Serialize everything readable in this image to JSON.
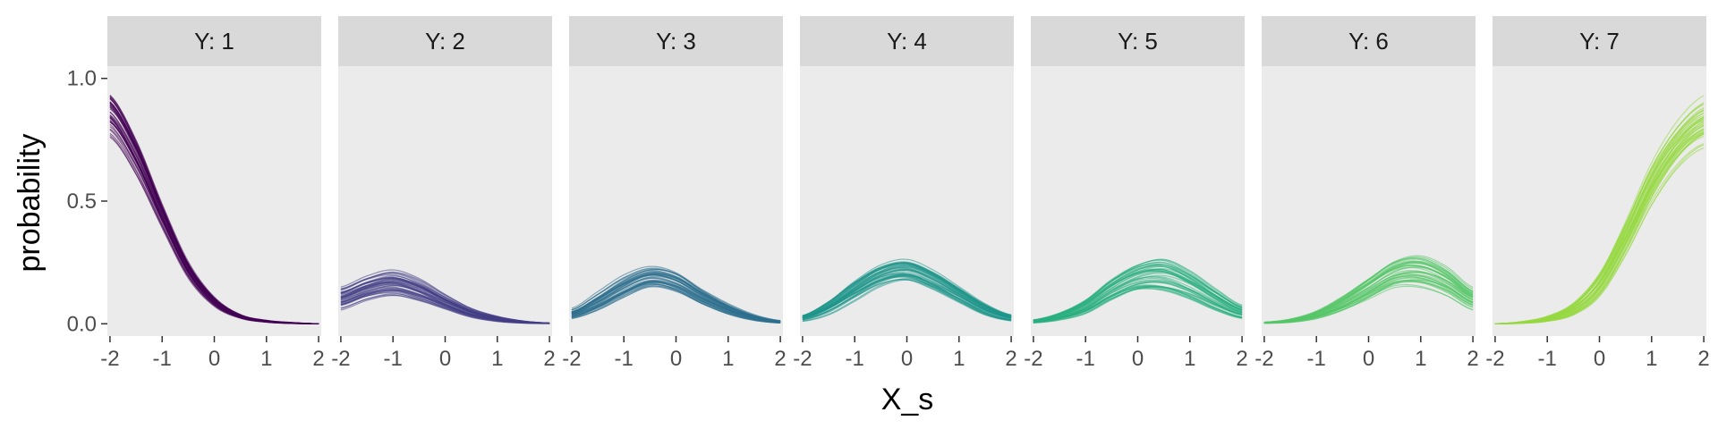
{
  "chart_data": {
    "type": "line",
    "xlabel": "X_s",
    "ylabel": "probability",
    "x_ticks": [
      -2,
      -1,
      0,
      1,
      2
    ],
    "x_tick_labels": [
      "-2",
      "-1",
      "0",
      "1",
      "2"
    ],
    "y_ticks": [
      0.0,
      0.5,
      1.0
    ],
    "y_tick_labels": [
      "0.0",
      "0.5",
      "1.0"
    ],
    "xlim": [
      -2.05,
      2.05
    ],
    "ylim": [
      -0.05,
      1.05
    ],
    "grid": false,
    "legend": "none",
    "x": [
      -2,
      -1.5,
      -1,
      -0.5,
      0,
      0.5,
      1,
      1.5,
      2
    ],
    "panels": [
      {
        "label": "Y: 1",
        "color": "#440154",
        "mean": [
          0.85,
          0.68,
          0.44,
          0.22,
          0.09,
          0.03,
          0.01,
          0.003,
          0.0
        ],
        "spread": [
          0.08,
          0.07,
          0.05,
          0.035,
          0.02,
          0.008,
          0.004,
          0.002,
          0.0
        ]
      },
      {
        "label": "Y: 2",
        "color": "#433E85",
        "mean": [
          0.11,
          0.15,
          0.17,
          0.14,
          0.09,
          0.045,
          0.02,
          0.007,
          0.002
        ],
        "spread": [
          0.04,
          0.045,
          0.05,
          0.045,
          0.03,
          0.018,
          0.01,
          0.004,
          0.001
        ]
      },
      {
        "label": "Y: 3",
        "color": "#2D708E",
        "mean": [
          0.04,
          0.09,
          0.15,
          0.19,
          0.17,
          0.11,
          0.06,
          0.025,
          0.008
        ],
        "spread": [
          0.015,
          0.03,
          0.04,
          0.04,
          0.04,
          0.03,
          0.02,
          0.01,
          0.004
        ]
      },
      {
        "label": "Y: 4",
        "color": "#1F968B",
        "mean": [
          0.025,
          0.07,
          0.14,
          0.2,
          0.22,
          0.18,
          0.12,
          0.06,
          0.025
        ],
        "spread": [
          0.01,
          0.025,
          0.04,
          0.045,
          0.045,
          0.04,
          0.03,
          0.02,
          0.01
        ]
      },
      {
        "label": "Y: 5",
        "color": "#29AF7F",
        "mean": [
          0.01,
          0.03,
          0.07,
          0.14,
          0.19,
          0.2,
          0.16,
          0.1,
          0.05
        ],
        "spread": [
          0.005,
          0.012,
          0.025,
          0.04,
          0.05,
          0.06,
          0.05,
          0.035,
          0.02
        ]
      },
      {
        "label": "Y: 6",
        "color": "#55C667",
        "mean": [
          0.004,
          0.012,
          0.035,
          0.08,
          0.14,
          0.2,
          0.21,
          0.17,
          0.1
        ],
        "spread": [
          0.002,
          0.006,
          0.015,
          0.03,
          0.045,
          0.055,
          0.06,
          0.05,
          0.035
        ]
      },
      {
        "label": "Y: 7",
        "color": "#95D840",
        "mean": [
          0.0,
          0.005,
          0.02,
          0.06,
          0.16,
          0.35,
          0.57,
          0.73,
          0.82
        ],
        "spread": [
          0.0,
          0.003,
          0.01,
          0.025,
          0.05,
          0.07,
          0.08,
          0.08,
          0.08
        ]
      }
    ],
    "draws_per_panel": 40
  }
}
